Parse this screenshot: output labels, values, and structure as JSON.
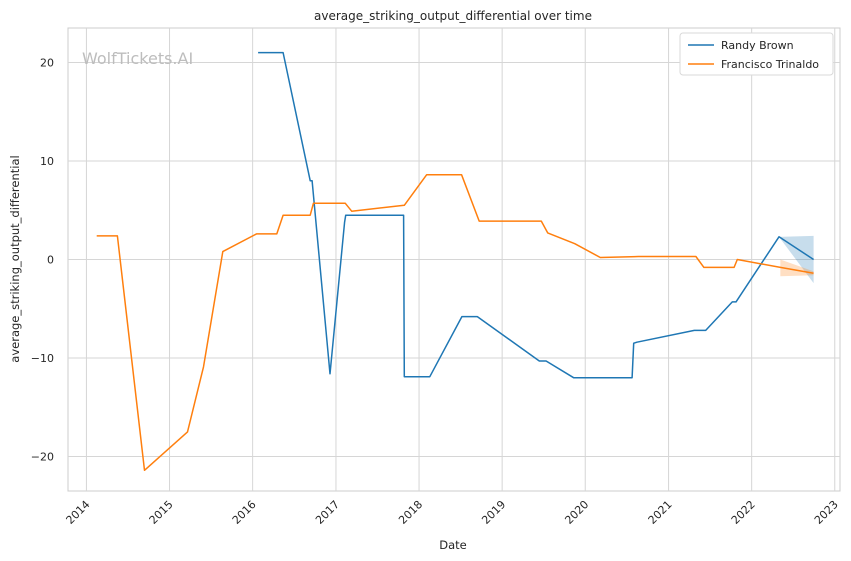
{
  "chart_data": {
    "type": "line",
    "title": "average_striking_output_differential over time",
    "xlabel": "Date",
    "ylabel": "average_striking_output_differential",
    "watermark": "WolfTickets.AI",
    "xlim": [
      "2013-10-12",
      "2023-01-24"
    ],
    "ylim": [
      -23.5,
      23.5
    ],
    "x_ticks": [
      "2014",
      "2015",
      "2016",
      "2017",
      "2018",
      "2019",
      "2020",
      "2021",
      "2022",
      "2023"
    ],
    "y_ticks": [
      -20,
      -10,
      0,
      10,
      20
    ],
    "grid": true,
    "legend_position": "top-right",
    "series": [
      {
        "name": "Randy Brown",
        "color": "#1f77b4",
        "points": [
          [
            "2016-01-25",
            21.0
          ],
          [
            "2016-05-14",
            21.0
          ],
          [
            "2016-09-10",
            8.0
          ],
          [
            "2016-09-18",
            8.0
          ],
          [
            "2016-12-06",
            -11.6
          ],
          [
            "2017-02-08",
            3.8
          ],
          [
            "2017-02-13",
            4.5
          ],
          [
            "2017-10-25",
            4.5
          ],
          [
            "2017-10-28",
            -11.9
          ],
          [
            "2018-02-17",
            -11.9
          ],
          [
            "2018-07-08",
            -5.8
          ],
          [
            "2018-09-14",
            -5.8
          ],
          [
            "2019-06-13",
            -10.3
          ],
          [
            "2019-07-13",
            -10.3
          ],
          [
            "2019-11-11",
            -12.0
          ],
          [
            "2020-07-25",
            -12.0
          ],
          [
            "2020-08-01",
            -8.5
          ],
          [
            "2020-08-15",
            -8.4
          ],
          [
            "2021-04-24",
            -7.2
          ],
          [
            "2021-06-13",
            -7.2
          ],
          [
            "2021-10-08",
            -4.3
          ],
          [
            "2021-10-24",
            -4.3
          ],
          [
            "2022-05-01",
            2.3
          ],
          [
            "2022-09-30",
            0.0
          ]
        ],
        "band": {
          "x": [
            "2022-05-01",
            "2022-09-30"
          ],
          "lower": [
            2.3,
            -2.4
          ],
          "upper": [
            2.3,
            2.4
          ]
        }
      },
      {
        "name": "Francisco Trinaldo",
        "color": "#ff7f0e",
        "points": [
          [
            "2014-02-15",
            2.4
          ],
          [
            "2014-05-17",
            2.4
          ],
          [
            "2014-09-13",
            -21.4
          ],
          [
            "2015-03-21",
            -17.5
          ],
          [
            "2015-05-30",
            -10.9
          ],
          [
            "2015-08-23",
            0.8
          ],
          [
            "2016-01-18",
            2.6
          ],
          [
            "2016-04-16",
            2.6
          ],
          [
            "2016-05-14",
            4.5
          ],
          [
            "2016-09-10",
            4.5
          ],
          [
            "2016-09-24",
            5.7
          ],
          [
            "2017-02-11",
            5.7
          ],
          [
            "2017-03-11",
            4.9
          ],
          [
            "2017-10-28",
            5.5
          ],
          [
            "2018-02-03",
            8.6
          ],
          [
            "2018-07-07",
            8.6
          ],
          [
            "2018-09-22",
            3.9
          ],
          [
            "2019-06-22",
            3.9
          ],
          [
            "2019-07-20",
            2.7
          ],
          [
            "2019-11-16",
            1.6
          ],
          [
            "2020-03-07",
            0.2
          ],
          [
            "2020-08-22",
            0.3
          ],
          [
            "2021-05-01",
            0.3
          ],
          [
            "2021-06-05",
            -0.8
          ],
          [
            "2021-10-16",
            -0.8
          ],
          [
            "2021-10-30",
            0.0
          ],
          [
            "2022-05-07",
            -0.8
          ],
          [
            "2022-09-30",
            -1.4
          ]
        ],
        "band": {
          "x": [
            "2022-05-07",
            "2022-09-30"
          ],
          "lower": [
            -1.7,
            -1.6
          ],
          "upper": [
            0.0,
            -1.2
          ]
        }
      }
    ]
  }
}
